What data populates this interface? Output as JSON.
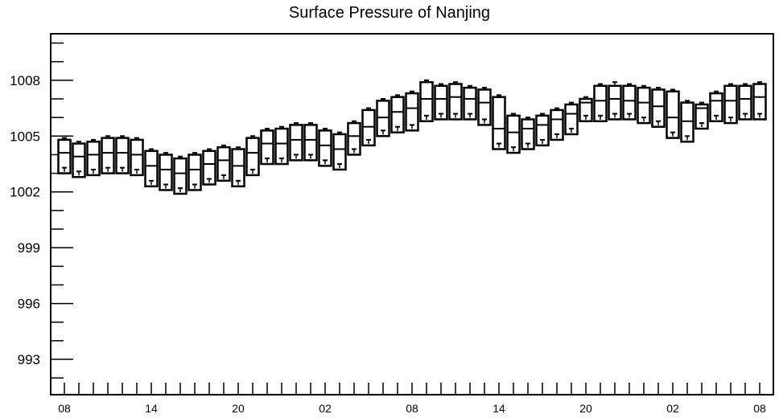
{
  "chart_data": {
    "type": "box",
    "title": "Surface Pressure of Nanjing",
    "xlabel": "",
    "ylabel": "",
    "x_tick_labels": [
      "08",
      "14",
      "20",
      "02",
      "08",
      "14",
      "20",
      "02",
      "08"
    ],
    "y_tick_labels": [
      1008,
      1005,
      1002,
      999,
      996,
      993
    ],
    "ylim": [
      991.1,
      1010.5
    ],
    "grid": false,
    "legend": "none",
    "series": [
      {
        "x": [
          "08",
          "09",
          "10",
          "11",
          "12",
          "13",
          "14",
          "15",
          "16",
          "17",
          "18",
          "19",
          "20",
          "21",
          "22",
          "23",
          "00",
          "01",
          "02",
          "03",
          "04",
          "05",
          "06",
          "07",
          "08",
          "09",
          "10",
          "11",
          "12",
          "13",
          "14",
          "15",
          "16",
          "17",
          "18",
          "19",
          "20",
          "21",
          "22",
          "23",
          "00",
          "01",
          "02",
          "03",
          "04",
          "05",
          "06",
          "07",
          "08"
        ],
        "q1": [
          1003.0,
          1002.8,
          1002.9,
          1003.0,
          1003.0,
          1002.9,
          1002.3,
          1002.1,
          1001.9,
          1002.1,
          1002.4,
          1002.6,
          1002.3,
          1002.9,
          1003.5,
          1003.5,
          1003.7,
          1003.7,
          1003.4,
          1003.2,
          1004.0,
          1004.5,
          1005.0,
          1005.2,
          1005.3,
          1005.8,
          1005.9,
          1005.9,
          1005.9,
          1005.6,
          1004.3,
          1004.1,
          1004.3,
          1004.5,
          1004.8,
          1005.1,
          1005.8,
          1005.8,
          1005.9,
          1005.9,
          1005.7,
          1005.5,
          1004.9,
          1004.7,
          1005.4,
          1005.8,
          1005.7,
          1005.9,
          1005.9
        ],
        "median": [
          1004.1,
          1003.9,
          1004.0,
          1004.1,
          1004.1,
          1004.0,
          1003.4,
          1003.2,
          1003.0,
          1003.2,
          1003.5,
          1003.7,
          1003.4,
          1004.1,
          1004.6,
          1004.6,
          1004.8,
          1004.8,
          1004.5,
          1004.3,
          1005.0,
          1005.5,
          1006.0,
          1006.3,
          1006.5,
          1007.0,
          1007.0,
          1007.1,
          1007.0,
          1006.8,
          1005.4,
          1005.2,
          1005.4,
          1005.6,
          1005.9,
          1006.2,
          1006.8,
          1006.9,
          1007.0,
          1006.9,
          1006.8,
          1006.6,
          1006.0,
          1005.8,
          1006.5,
          1006.9,
          1006.9,
          1007.0,
          1007.1
        ],
        "q3": [
          1004.8,
          1004.6,
          1004.7,
          1004.9,
          1004.9,
          1004.8,
          1004.2,
          1004.0,
          1003.8,
          1004.0,
          1004.2,
          1004.4,
          1004.3,
          1004.9,
          1005.3,
          1005.4,
          1005.6,
          1005.6,
          1005.3,
          1005.1,
          1005.7,
          1006.4,
          1006.9,
          1007.1,
          1007.3,
          1007.9,
          1007.7,
          1007.8,
          1007.6,
          1007.5,
          1007.1,
          1006.1,
          1005.9,
          1006.1,
          1006.4,
          1006.7,
          1007.0,
          1007.7,
          1007.7,
          1007.7,
          1007.6,
          1007.5,
          1007.4,
          1006.8,
          1006.7,
          1007.3,
          1007.7,
          1007.7,
          1007.8
        ],
        "max": [
          1004.9,
          1004.7,
          1004.8,
          1005.0,
          1005.0,
          1004.9,
          1004.3,
          1004.1,
          1003.9,
          1004.1,
          1004.3,
          1004.5,
          1004.4,
          1005.0,
          1005.4,
          1005.5,
          1005.7,
          1005.7,
          1005.4,
          1005.2,
          1005.8,
          1006.5,
          1007.0,
          1007.2,
          1007.4,
          1008.0,
          1007.8,
          1007.9,
          1007.7,
          1007.6,
          1007.2,
          1006.2,
          1006.0,
          1006.2,
          1006.5,
          1006.8,
          1007.1,
          1007.8,
          1007.9,
          1007.8,
          1007.7,
          1007.6,
          1007.5,
          1006.9,
          1006.8,
          1007.4,
          1007.8,
          1007.8,
          1007.9
        ],
        "min": [
          1003.3,
          1003.1,
          1003.2,
          1003.3,
          1003.3,
          1003.2,
          1002.6,
          1002.4,
          1002.2,
          1002.4,
          1002.7,
          1002.9,
          1002.6,
          1003.2,
          1003.8,
          1003.8,
          1004.0,
          1004.0,
          1003.7,
          1003.5,
          1004.3,
          1004.8,
          1005.3,
          1005.5,
          1005.6,
          1006.1,
          1006.2,
          1006.2,
          1006.2,
          1005.9,
          1004.6,
          1004.4,
          1004.6,
          1004.8,
          1005.1,
          1005.4,
          1006.1,
          1006.1,
          1006.2,
          1006.2,
          1006.0,
          1005.8,
          1005.2,
          1005.0,
          1005.7,
          1006.1,
          1006.0,
          1006.2,
          1006.2
        ]
      }
    ]
  }
}
